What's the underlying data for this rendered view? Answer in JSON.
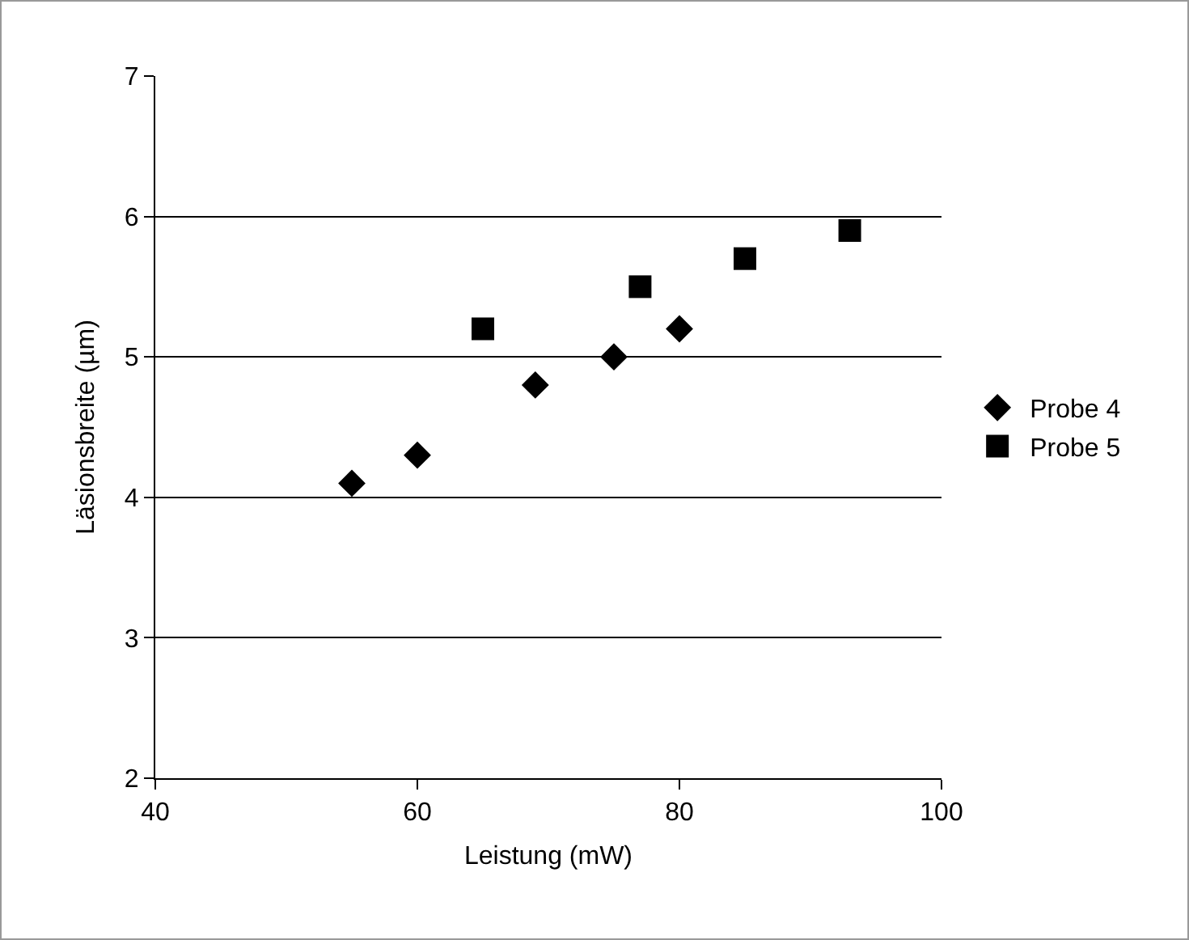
{
  "chart_data": {
    "type": "scatter",
    "xlabel": "Leistung (mW)",
    "ylabel": "Läsionsbreite (µm)",
    "xlim": [
      40,
      100
    ],
    "xticks": [
      40,
      60,
      80,
      100
    ],
    "ylim": [
      2,
      7
    ],
    "yticks": [
      2,
      3,
      4,
      5,
      6,
      7
    ],
    "grid": "y",
    "legend": "right",
    "series": [
      {
        "name": "Probe 4",
        "color": "#000000",
        "marker": "diamond",
        "x": [
          55,
          60,
          69,
          75,
          80
        ],
        "values": [
          4.1,
          4.3,
          4.8,
          5.0,
          5.2
        ]
      },
      {
        "name": "Probe 5",
        "color": "#000000",
        "marker": "square",
        "x": [
          65,
          77,
          85,
          93
        ],
        "values": [
          5.2,
          5.5,
          5.7,
          5.9
        ]
      }
    ]
  }
}
